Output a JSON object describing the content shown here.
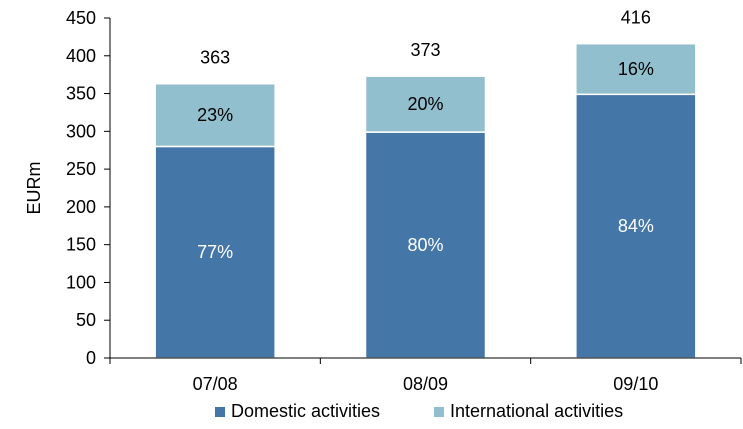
{
  "chart_data": {
    "type": "bar",
    "stacked": true,
    "title": "",
    "xlabel": "",
    "ylabel": "EURm",
    "ylim": [
      0,
      450
    ],
    "yticks": [
      0,
      50,
      100,
      150,
      200,
      250,
      300,
      350,
      400,
      450
    ],
    "categories": [
      "07/08",
      "08/09",
      "09/10"
    ],
    "totals": [
      363,
      373,
      416
    ],
    "series": [
      {
        "name": "Domestic activities",
        "color": "#4476A7",
        "label_color": "#ffffff",
        "values": [
          280,
          299,
          349
        ],
        "labels": [
          "77%",
          "80%",
          "84%"
        ]
      },
      {
        "name": "International activities",
        "color": "#92BFCD",
        "label_color": "#000000",
        "values": [
          83,
          74,
          67
        ],
        "labels": [
          "23%",
          "20%",
          "16%"
        ]
      }
    ],
    "grid": false,
    "legend_position": "bottom"
  }
}
